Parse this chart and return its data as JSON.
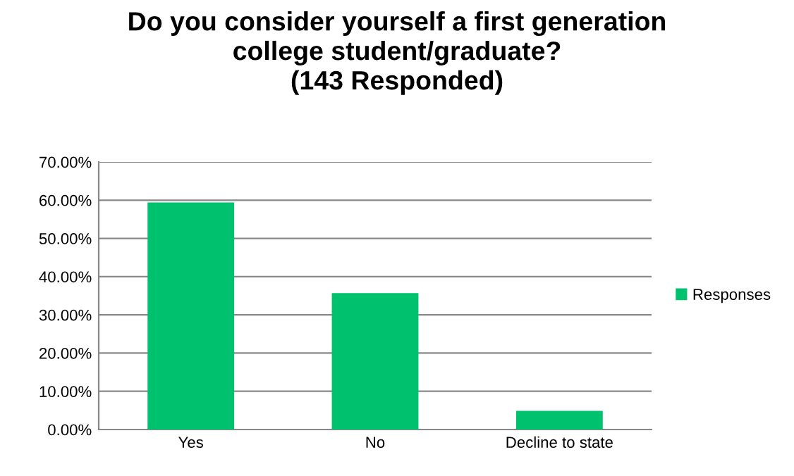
{
  "chart_data": {
    "type": "bar",
    "title": "Do you consider yourself a first generation\ncollege student/graduate?\n(143 Responded)",
    "categories": [
      "Yes",
      "No",
      "Decline to state"
    ],
    "series": [
      {
        "name": "Responses",
        "color": "#00c16e",
        "values": [
          59.4,
          35.7,
          4.9
        ]
      }
    ],
    "ylim": [
      0,
      70
    ],
    "yticks": [
      {
        "value": 0,
        "label": "0.00%"
      },
      {
        "value": 10,
        "label": "10.00%"
      },
      {
        "value": 20,
        "label": "20.00%"
      },
      {
        "value": 30,
        "label": "30.00%"
      },
      {
        "value": 40,
        "label": "40.00%"
      },
      {
        "value": 50,
        "label": "50.00%"
      },
      {
        "value": 60,
        "label": "60.00%"
      },
      {
        "value": 70,
        "label": "70.00%"
      }
    ],
    "grid": "y",
    "legend": "right"
  }
}
